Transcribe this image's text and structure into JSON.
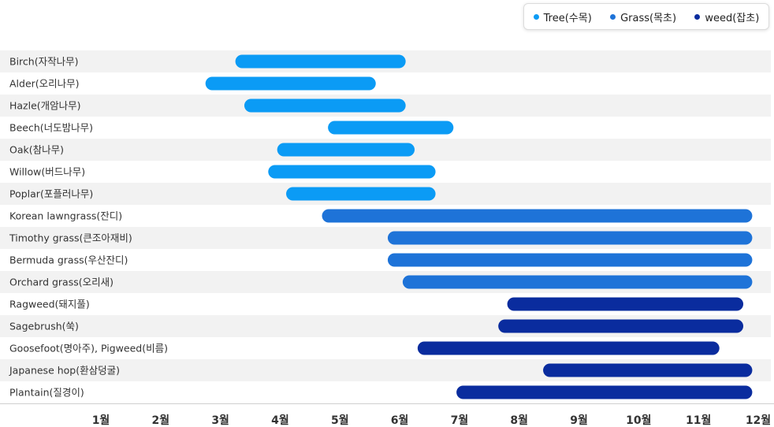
{
  "chart_data": {
    "type": "bar",
    "orientation": "horizontal-range",
    "x_tick_labels": [
      "1월",
      "2월",
      "3월",
      "4월",
      "5월",
      "6월",
      "7월",
      "8월",
      "9월",
      "10월",
      "11월",
      "12월"
    ],
    "xlim": [
      0.5,
      12
    ],
    "legend_position": "top-right",
    "grid": false,
    "series": [
      {
        "key": "tree",
        "name": "Tree(수목)",
        "color": "#0B9BF5"
      },
      {
        "key": "grass",
        "name": "Grass(목초)",
        "color": "#1E73D8"
      },
      {
        "key": "weed",
        "name": "weed(잡초)",
        "color": "#0A2C9E"
      }
    ],
    "rows": [
      {
        "label": "Birch(자작나무)",
        "series": "tree",
        "start": 3.25,
        "end": 6.1
      },
      {
        "label": "Alder(오리나무)",
        "series": "tree",
        "start": 2.75,
        "end": 5.6
      },
      {
        "label": "Hazle(개암나무)",
        "series": "tree",
        "start": 3.4,
        "end": 6.1
      },
      {
        "label": "Beech(너도밤나무)",
        "series": "tree",
        "start": 4.8,
        "end": 6.9
      },
      {
        "label": "Oak(참나무)",
        "series": "tree",
        "start": 3.95,
        "end": 6.25
      },
      {
        "label": "Willow(버드나무)",
        "series": "tree",
        "start": 3.8,
        "end": 6.6
      },
      {
        "label": "Poplar(포플러나무)",
        "series": "tree",
        "start": 4.1,
        "end": 6.6
      },
      {
        "label": "Korean lawngrass(잔디)",
        "series": "grass",
        "start": 4.7,
        "end": 11.9
      },
      {
        "label": "Timothy grass(큰조아재비)",
        "series": "grass",
        "start": 5.8,
        "end": 11.9
      },
      {
        "label": "Bermuda grass(우산잔디)",
        "series": "grass",
        "start": 5.8,
        "end": 11.9
      },
      {
        "label": "Orchard grass(오리새)",
        "series": "grass",
        "start": 6.05,
        "end": 11.9
      },
      {
        "label": "Ragweed(돼지풀)",
        "series": "weed",
        "start": 7.8,
        "end": 11.75
      },
      {
        "label": "Sagebrush(쑥)",
        "series": "weed",
        "start": 7.65,
        "end": 11.75
      },
      {
        "label": "Goosefoot(명아주), Pigweed(비름)",
        "series": "weed",
        "start": 6.3,
        "end": 11.35
      },
      {
        "label": "Japanese hop(환삼덩굴)",
        "series": "weed",
        "start": 8.4,
        "end": 11.9
      },
      {
        "label": "Plantain(질경이)",
        "series": "weed",
        "start": 6.95,
        "end": 11.9
      }
    ]
  }
}
